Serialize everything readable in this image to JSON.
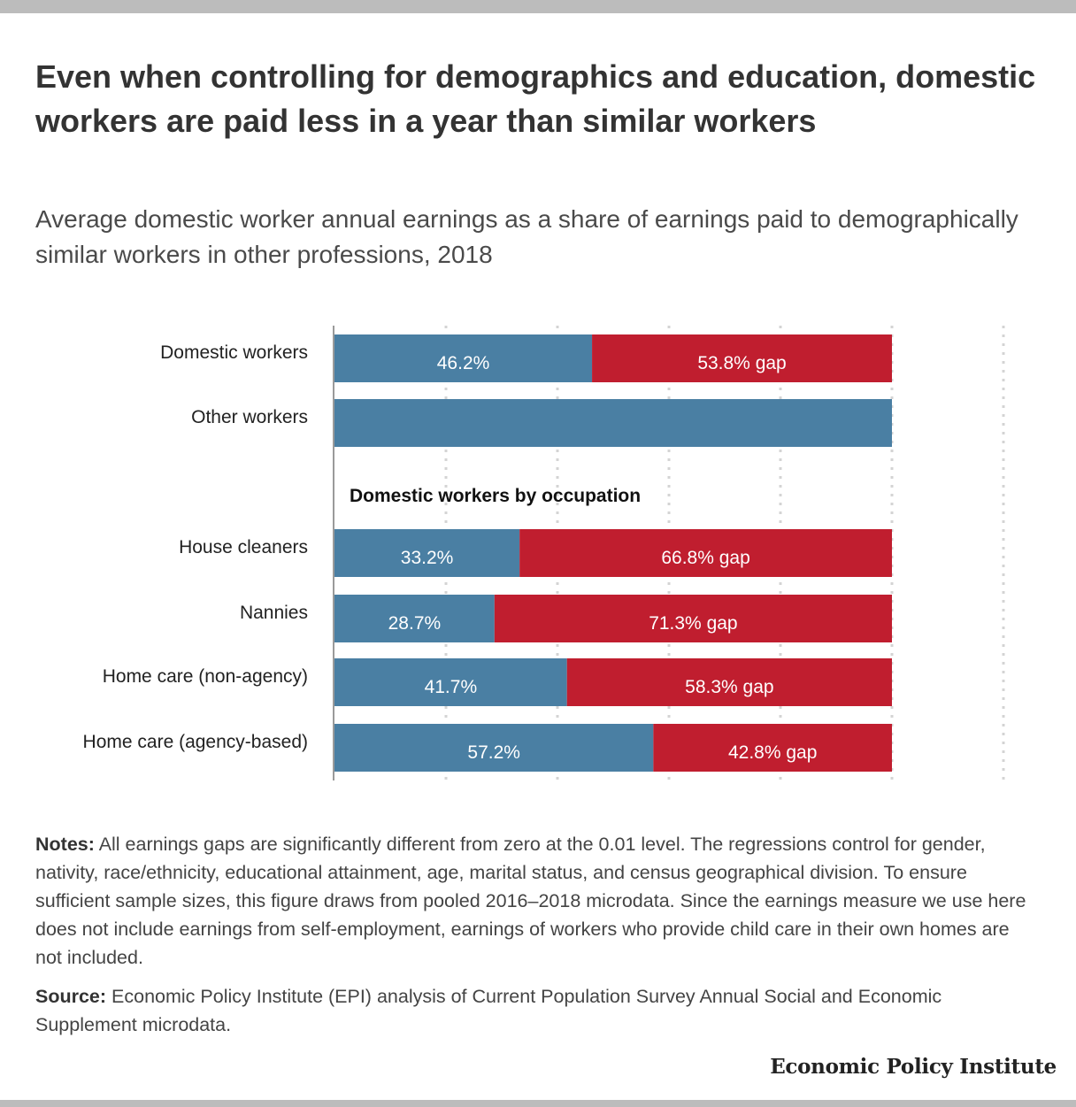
{
  "title": "Even when controlling for demographics and education, domestic workers are paid less in a year than similar workers",
  "subtitle": "Average domestic worker annual earnings as a share of earnings paid to demographically similar workers in other professions, 2018",
  "colors": {
    "share": "#4a7fa3",
    "gap": "#c01e2f",
    "grid": "#d4d4d4",
    "axis": "#9a9a9a"
  },
  "chart_data": {
    "type": "bar",
    "orientation": "horizontal",
    "stacked": true,
    "xlim": [
      0,
      120
    ],
    "grid": true,
    "categories": [
      "Domestic workers",
      "Other workers",
      "House cleaners",
      "Nannies",
      "Home care (non-agency)",
      "Home care (agency-based)"
    ],
    "group_label": "Domestic workers by occupation",
    "series": [
      {
        "values": [
          46.2,
          100,
          33.2,
          28.7,
          41.7,
          57.2
        ],
        "labels": [
          "46.2%",
          "",
          "33.2%",
          "28.7%",
          "41.7%",
          "57.2%"
        ]
      },
      {
        "values": [
          53.8,
          0,
          66.8,
          71.3,
          58.3,
          42.8
        ],
        "labels": [
          "53.8% gap",
          "",
          "66.8% gap",
          "71.3% gap",
          "58.3% gap",
          "42.8% gap"
        ]
      }
    ]
  },
  "notes": {
    "label": "Notes:",
    "text": " All earnings gaps are significantly different from zero at the 0.01 level. The regressions control for gender, nativity, race/ethnicity, educational attainment, age, marital status, and census geographical division. To ensure sufficient sample sizes, this figure draws from pooled 2016–2018 microdata. Since the earnings measure we use here does not include earnings from self-employment, earnings of workers who provide child care in their own homes are not included."
  },
  "source": {
    "label": "Source:",
    "text": " Economic Policy Institute (EPI) analysis of Current Population Survey Annual Social and Economic Supplement microdata."
  },
  "brand": "Economic Policy Institute"
}
